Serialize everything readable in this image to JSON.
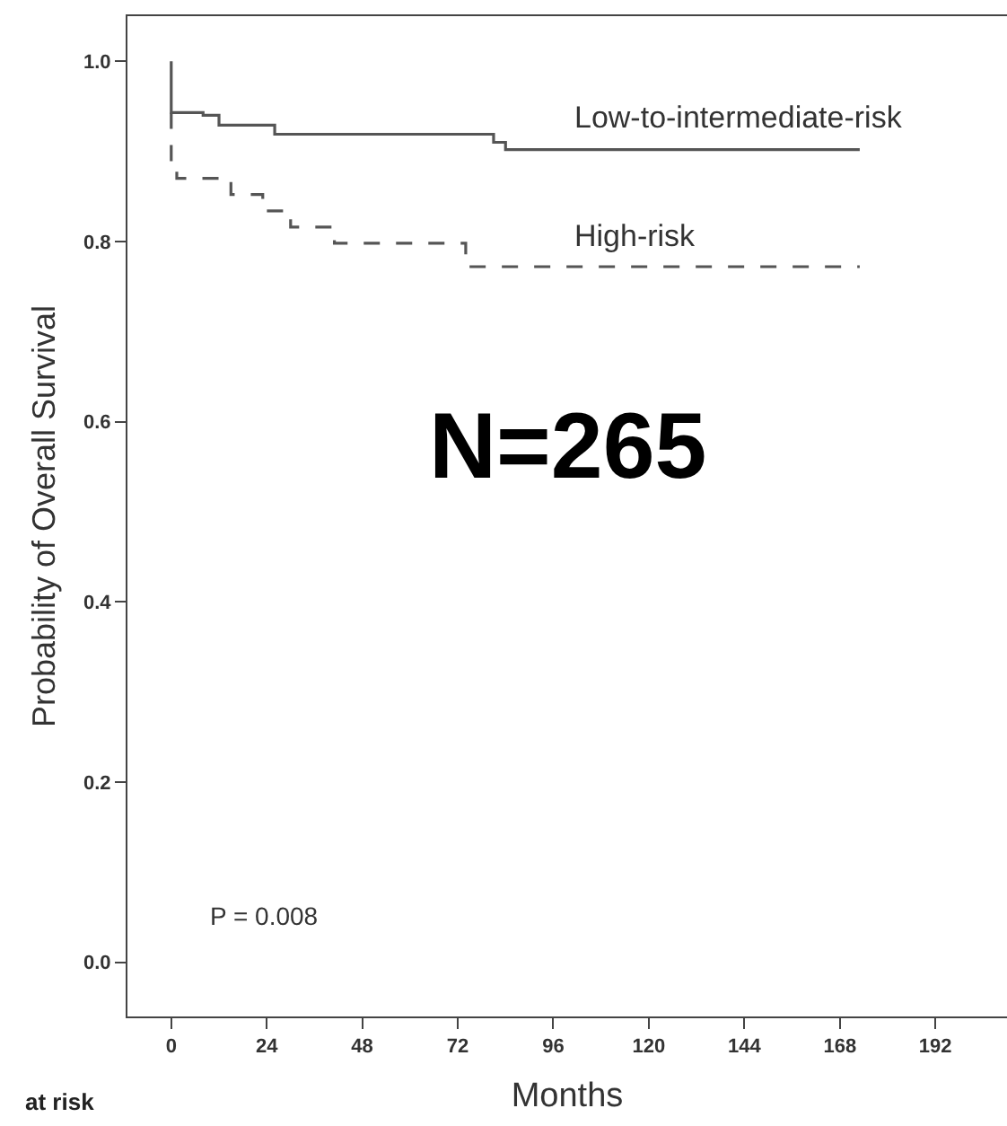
{
  "chart_data": {
    "type": "step",
    "xlabel": "Months",
    "ylabel": "Probability of Overall Survival",
    "annotations": [
      "N=265",
      "P = 0.008",
      "at risk"
    ],
    "xlim": [
      -11,
      210
    ],
    "xticks": [
      0,
      24,
      48,
      72,
      96,
      120,
      144,
      168,
      192
    ],
    "ylim": [
      -0.06,
      1.05
    ],
    "yticks": [
      {
        "value": 0,
        "label": "0.0"
      },
      {
        "value": 0.2,
        "label": "0.2"
      },
      {
        "value": 0.4,
        "label": "0.4"
      },
      {
        "value": 0.6,
        "label": "0.6"
      },
      {
        "value": 0.8,
        "label": "0.8"
      },
      {
        "value": 1,
        "label": "1.0"
      }
    ],
    "grid": false,
    "legend": false,
    "marker": "none",
    "series": [
      {
        "name": "Low-to-intermediate-risk",
        "color": "#555555",
        "line_style": "solid",
        "x": [
          0,
          0,
          8,
          12,
          26,
          81,
          84,
          173
        ],
        "values": [
          1.0,
          0.943,
          0.94,
          0.929,
          0.919,
          0.91,
          0.902,
          0.902
        ]
      },
      {
        "name": "High-risk",
        "color": "#555555",
        "line_style": "dashed",
        "x": [
          0,
          0,
          1.4,
          15,
          23,
          30,
          41,
          74,
          173
        ],
        "values": [
          0.943,
          0.887,
          0.87,
          0.852,
          0.834,
          0.816,
          0.798,
          0.772,
          0.772
        ]
      }
    ]
  }
}
